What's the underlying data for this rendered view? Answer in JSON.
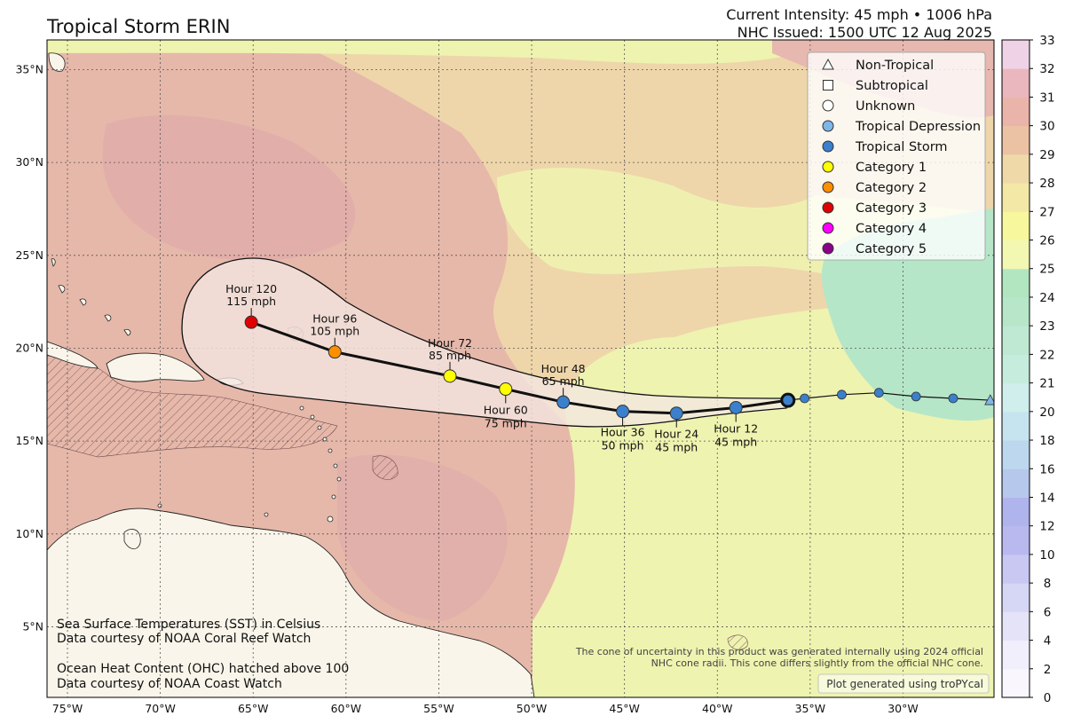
{
  "title": "Tropical Storm ERIN",
  "header": {
    "intensity": "Current Intensity: 45 mph • 1006 hPa",
    "issued": "NHC Issued: 1500 UTC 12 Aug 2025"
  },
  "axes": {
    "lon_ticks": [
      {
        "lon": -75,
        "label": "75°W"
      },
      {
        "lon": -70,
        "label": "70°W"
      },
      {
        "lon": -65,
        "label": "65°W"
      },
      {
        "lon": -60,
        "label": "60°W"
      },
      {
        "lon": -55,
        "label": "55°W"
      },
      {
        "lon": -50,
        "label": "50°W"
      },
      {
        "lon": -45,
        "label": "45°W"
      },
      {
        "lon": -40,
        "label": "40°W"
      },
      {
        "lon": -35,
        "label": "35°W"
      },
      {
        "lon": -30,
        "label": "30°W"
      }
    ],
    "lat_ticks": [
      {
        "lat": 35,
        "label": "35°N"
      },
      {
        "lat": 30,
        "label": "30°N"
      },
      {
        "lat": 25,
        "label": "25°N"
      },
      {
        "lat": 20,
        "label": "20°N"
      },
      {
        "lat": 15,
        "label": "15°N"
      },
      {
        "lat": 10,
        "label": "10°N"
      },
      {
        "lat": 5,
        "label": "5°N"
      }
    ],
    "lon_range": [
      -76.1,
      -25.1
    ],
    "lat_range": [
      1.2,
      36.6
    ]
  },
  "legend": [
    {
      "label": "Non-Tropical",
      "symbol": "triangle",
      "color": "#ffffff"
    },
    {
      "label": "Subtropical",
      "symbol": "square",
      "color": "#ffffff"
    },
    {
      "label": "Unknown",
      "symbol": "circle",
      "color": "#ffffff"
    },
    {
      "label": "Tropical Depression",
      "symbol": "circle",
      "color": "#7fb6e8"
    },
    {
      "label": "Tropical Storm",
      "symbol": "circle",
      "color": "#3a80cc"
    },
    {
      "label": "Category 1",
      "symbol": "circle",
      "color": "#ffff00"
    },
    {
      "label": "Category 2",
      "symbol": "circle",
      "color": "#ff8f00"
    },
    {
      "label": "Category 3",
      "symbol": "circle",
      "color": "#e00000"
    },
    {
      "label": "Category 4",
      "symbol": "circle",
      "color": "#ff00ff"
    },
    {
      "label": "Category 5",
      "symbol": "circle",
      "color": "#8b0088"
    }
  ],
  "colorbar": {
    "labels": [
      "0",
      "2",
      "4",
      "6",
      "8",
      "10",
      "12",
      "14",
      "16",
      "18",
      "20",
      "21",
      "22",
      "23",
      "24",
      "25",
      "26",
      "27",
      "28",
      "29",
      "30",
      "31",
      "32",
      "33"
    ],
    "colors": [
      "#f9f7fd",
      "#f1effb",
      "#e4e3f8",
      "#d6d6f5",
      "#c8c8f2",
      "#b9b9ef",
      "#b0b4ec",
      "#b6c8ec",
      "#bdd7ee",
      "#c6e4ef",
      "#cfeeec",
      "#c6ecde",
      "#bfe9d3",
      "#b7e6c8",
      "#b2e6c0",
      "#f2f7b2",
      "#f7f79e",
      "#f4e8a7",
      "#f0d9a9",
      "#ecc2a4",
      "#eab4aa",
      "#e9b7bd",
      "#f0d2e6"
    ]
  },
  "storm": {
    "current": {
      "lon": -36.2,
      "lat": 17.2
    },
    "forecast": [
      {
        "label": "Hour 12",
        "wind": "45 mph",
        "lon": -39.0,
        "lat": 16.8,
        "color": "#3a80cc"
      },
      {
        "label": "Hour 24",
        "wind": "45 mph",
        "lon": -42.2,
        "lat": 16.5,
        "color": "#3a80cc"
      },
      {
        "label": "Hour 36",
        "wind": "50 mph",
        "lon": -45.1,
        "lat": 16.6,
        "color": "#3a80cc"
      },
      {
        "label": "Hour 48",
        "wind": "65 mph",
        "lon": -48.3,
        "lat": 17.1,
        "color": "#3a80cc"
      },
      {
        "label": "Hour 60",
        "wind": "75 mph",
        "lon": -51.4,
        "lat": 17.8,
        "color": "#ffff00"
      },
      {
        "label": "Hour 72",
        "wind": "85 mph",
        "lon": -54.4,
        "lat": 18.5,
        "color": "#ffff00"
      },
      {
        "label": "Hour 96",
        "wind": "105 mph",
        "lon": -60.6,
        "lat": 19.8,
        "color": "#ff8f00"
      },
      {
        "label": "Hour 120",
        "wind": "115 mph",
        "lon": -65.1,
        "lat": 21.4,
        "color": "#e00000"
      }
    ],
    "past_track": [
      {
        "lon": -25.3,
        "lat": 17.2,
        "symbol": "triangle",
        "color": "#7fb6e8"
      },
      {
        "lon": -27.3,
        "lat": 17.3,
        "symbol": "circle",
        "color": "#3a80cc"
      },
      {
        "lon": -29.3,
        "lat": 17.4,
        "symbol": "circle",
        "color": "#3a80cc"
      },
      {
        "lon": -31.3,
        "lat": 17.6,
        "symbol": "circle",
        "color": "#3a80cc"
      },
      {
        "lon": -33.3,
        "lat": 17.5,
        "symbol": "circle",
        "color": "#3a80cc"
      },
      {
        "lon": -35.3,
        "lat": 17.3,
        "symbol": "circle",
        "color": "#3a80cc"
      }
    ]
  },
  "notes": {
    "sst_line1": "Sea Surface Temperatures (SST) in Celsius",
    "sst_line2": "Data courtesy of NOAA Coral Reef Watch",
    "ohc_line1": "Ocean Heat Content (OHC) hatched above 100",
    "ohc_line2": "Data courtesy of NOAA Coast Watch",
    "cone_line1": "The cone of uncertainty in this product was generated internally using 2024 official",
    "cone_line2": "NHC cone radii. This cone differs slightly from the official NHC cone.",
    "credit": "Plot generated using troPYcal"
  },
  "colors": {
    "sst_warm": "#e5b7aa",
    "sst_pink": "#e2acab",
    "sst_tan": "#eed6aa",
    "sst_yellow": "#eef3b0",
    "sst_green": "#b6e6c8",
    "land": "#f9f5ea",
    "cone_fill": "#f2e6e0",
    "track": "#000000"
  }
}
